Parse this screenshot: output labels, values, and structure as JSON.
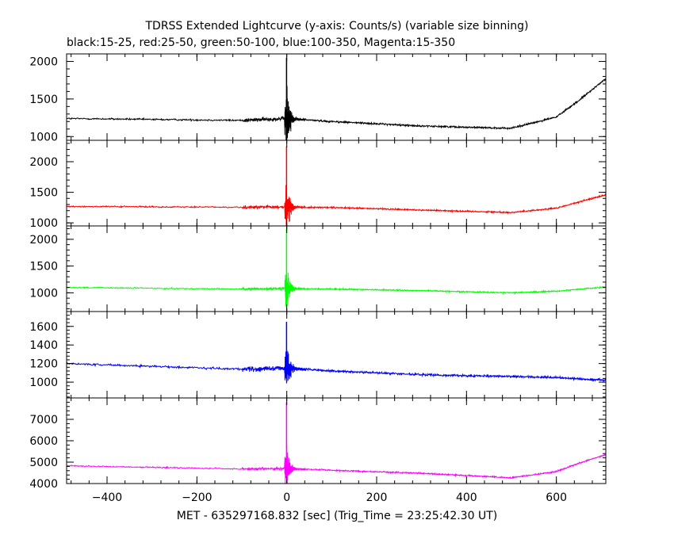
{
  "title": "TDRSS Extended Lightcurve (y-axis: Counts/s) (variable size binning)",
  "subtitle": "black:15-25, red:25-50, green:50-100, blue:100-350, Magenta:15-350",
  "xlabel": "MET - 635297168.832 [sec] (Trig_Time = 23:25:42.30 UT)",
  "chart_data": {
    "type": "line",
    "xlim": [
      -490,
      710
    ],
    "x_ticks": [
      -400,
      -200,
      0,
      200,
      400,
      600
    ],
    "x_tick_labels": [
      "−400",
      "−200",
      "0",
      "200",
      "400",
      "600"
    ],
    "grid": false,
    "panels": [
      {
        "name": "black:15-25",
        "color": "#000000",
        "ylim": [
          950,
          2100
        ],
        "y_ticks": [
          1000,
          1500,
          2000
        ],
        "y_tick_labels": [
          "1000",
          "1500",
          "2000"
        ],
        "baseline": [
          [
            -490,
            1240
          ],
          [
            -100,
            1215
          ],
          [
            0,
            1240
          ],
          [
            100,
            1200
          ],
          [
            300,
            1140
          ],
          [
            500,
            1110
          ],
          [
            600,
            1260
          ],
          [
            650,
            1480
          ],
          [
            710,
            1770
          ]
        ],
        "noise": 12,
        "pre_burst_noise": 25,
        "burst_amp": 420,
        "burst_peak": 2050
      },
      {
        "name": "red:25-50",
        "color": "#ff0000",
        "ylim": [
          950,
          2350
        ],
        "y_ticks": [
          1000,
          1500,
          2000
        ],
        "y_tick_labels": [
          "1000",
          "1500",
          "2000"
        ],
        "baseline": [
          [
            -490,
            1270
          ],
          [
            -100,
            1255
          ],
          [
            0,
            1260
          ],
          [
            100,
            1250
          ],
          [
            300,
            1210
          ],
          [
            500,
            1170
          ],
          [
            600,
            1240
          ],
          [
            710,
            1460
          ]
        ],
        "noise": 12,
        "pre_burst_noise": 25,
        "burst_amp": 420,
        "burst_peak": 2250
      },
      {
        "name": "green:50-100",
        "color": "#00ff00",
        "ylim": [
          650,
          2250
        ],
        "y_ticks": [
          1000,
          1500,
          2000
        ],
        "y_tick_labels": [
          "1000",
          "1500",
          "2000"
        ],
        "baseline": [
          [
            -490,
            1100
          ],
          [
            -100,
            1070
          ],
          [
            0,
            1080
          ],
          [
            100,
            1070
          ],
          [
            300,
            1040
          ],
          [
            500,
            1000
          ],
          [
            600,
            1030
          ],
          [
            710,
            1110
          ]
        ],
        "noise": 12,
        "pre_burst_noise": 25,
        "burst_amp": 380,
        "burst_peak": 2200
      },
      {
        "name": "blue:100-350",
        "color": "#0000ff",
        "ylim": [
          830,
          1760
        ],
        "y_ticks": [
          1000,
          1200,
          1400,
          1600
        ],
        "y_tick_labels": [
          "1000",
          "1200",
          "1400",
          "1600"
        ],
        "baseline": [
          [
            -490,
            1200
          ],
          [
            -100,
            1140
          ],
          [
            0,
            1150
          ],
          [
            100,
            1120
          ],
          [
            300,
            1080
          ],
          [
            500,
            1060
          ],
          [
            600,
            1050
          ],
          [
            710,
            1020
          ]
        ],
        "noise": 12,
        "pre_burst_noise": 28,
        "burst_amp": 260,
        "burst_peak": 1650
      },
      {
        "name": "Magenta:15-350",
        "color": "#ff00ff",
        "ylim": [
          4000,
          8000
        ],
        "y_ticks": [
          4000,
          5000,
          6000,
          7000
        ],
        "y_tick_labels": [
          "4000",
          "5000",
          "6000",
          "7000"
        ],
        "baseline": [
          [
            -490,
            4830
          ],
          [
            -100,
            4680
          ],
          [
            0,
            4700
          ],
          [
            100,
            4620
          ],
          [
            300,
            4480
          ],
          [
            500,
            4270
          ],
          [
            600,
            4560
          ],
          [
            650,
            4950
          ],
          [
            710,
            5350
          ]
        ],
        "noise": 30,
        "pre_burst_noise": 60,
        "burst_amp": 1000,
        "burst_peak": 7800
      }
    ]
  }
}
